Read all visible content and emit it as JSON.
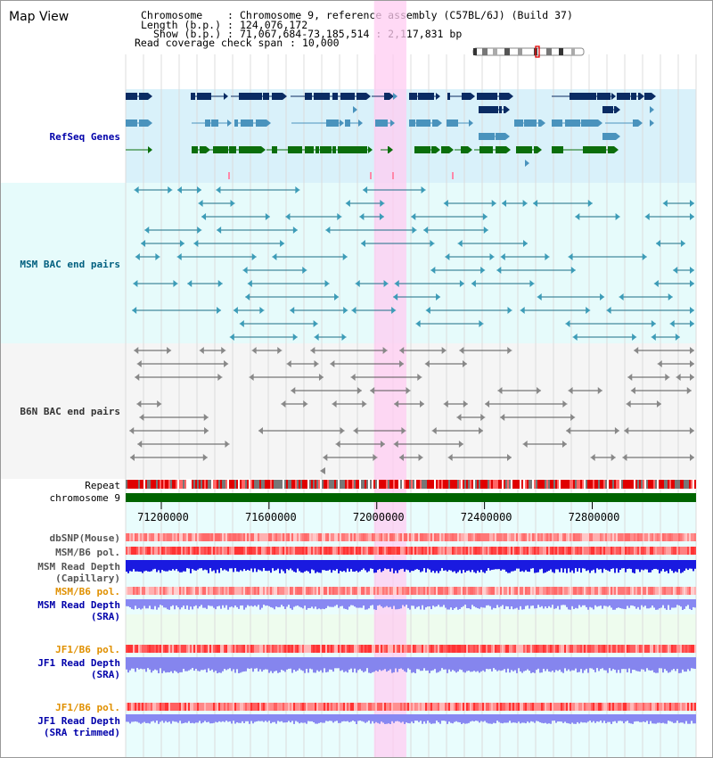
{
  "header": {
    "title": "Map View",
    "rows": [
      {
        "key": "Chromosome",
        "value": "Chromosome 9, reference assembly (C57BL/6J) (Build 37)"
      },
      {
        "key": "Length (b.p.)",
        "value": "124,076,172"
      },
      {
        "key": "Show (b.p.)",
        "value": "71,067,684-73,185,514 : 2,117,831 bp"
      },
      {
        "key": "Read coverage check span",
        "value": "10,000"
      }
    ]
  },
  "region": {
    "start": 71067684,
    "end": 73185514,
    "highlight_start": 71990000,
    "highlight_end": 72110000
  },
  "axis": {
    "ticks": [
      {
        "value": 71200000,
        "label": "71200000"
      },
      {
        "value": 71600000,
        "label": "71600000"
      },
      {
        "value": 72000000,
        "label": "72000000"
      },
      {
        "value": 72400000,
        "label": "72400000"
      },
      {
        "value": 72800000,
        "label": "72800000"
      }
    ]
  },
  "tracks": {
    "refseq": {
      "label": "RefSeq Genes",
      "color": "#0000aa"
    },
    "msm_bac": {
      "label": "MSM BAC end pairs",
      "color": "#005f7f"
    },
    "b6n_bac": {
      "label": "B6N BAC end pairs",
      "color": "#333333"
    },
    "repeat": {
      "label": "Repeat"
    },
    "chromosome": {
      "label": "chromosome 9"
    },
    "dbsnp": {
      "label": "dbSNP(Mouse)"
    },
    "msm_b6_pol_1": {
      "label": "MSM/B6 pol."
    },
    "msm_depth_cap": {
      "label1": "MSM Read Depth",
      "label2": "(Capillary)"
    },
    "msm_b6_pol_2": {
      "label": "MSM/B6 pol."
    },
    "msm_depth_sra": {
      "label1": "MSM Read Depth",
      "label2": "(SRA)"
    },
    "jf1_b6_pol_1": {
      "label": "JF1/B6 pol."
    },
    "jf1_depth_sra": {
      "label1": "JF1 Read Depth",
      "label2": "(SRA)"
    },
    "jf1_b6_pol_2": {
      "label": "JF1/B6 pol."
    },
    "jf1_depth_trim": {
      "label1": "JF1 Read Depth",
      "label2": "(SRA trimmed)"
    }
  }
}
